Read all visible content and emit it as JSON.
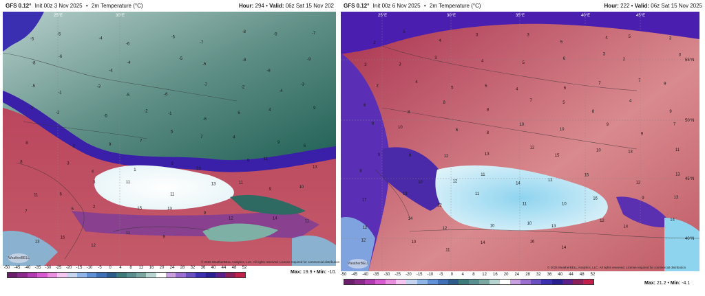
{
  "left": {
    "model": "GFS 0.12°",
    "init": "Init 00z 3 Nov 2025",
    "field": "2m Temperature (°C)",
    "hour_label": "Hour:",
    "hour": "294",
    "valid_label": "Valid:",
    "valid": "06z Sat 15 Nov 202",
    "lon_labels": [
      "25°E",
      "30°E"
    ],
    "max_label": "Max:",
    "max": "19.9",
    "min_label": "Min:",
    "min": "-10.",
    "license": "© 2025 WeatherBELL Analytics, LLC. All rights reserved. License required for commercial distribution",
    "logo": "WeatherBELL",
    "numbers": [
      "-5",
      "-5",
      "-4",
      "-6",
      "-5",
      "-7",
      "-8",
      "-9",
      "-7",
      "-8",
      "-6",
      "-4",
      "-4",
      "-5",
      "-5",
      "-8",
      "-8",
      "-9",
      "-5",
      "-1",
      "-3",
      "-5",
      "-6",
      "-7",
      "-2",
      "-4",
      "-3",
      "-1",
      "-2",
      "-5",
      "-2",
      "-1",
      "-6",
      "6",
      "4",
      "9",
      "8",
      "2",
      "9",
      "7",
      "5",
      "7",
      "4",
      "9",
      "6",
      "8",
      "3",
      "4",
      "1",
      "9",
      "13",
      "9",
      "11",
      "13",
      "11",
      "6",
      "3",
      "11",
      "11",
      "13",
      "11",
      "9",
      "10",
      "7",
      "5",
      "2",
      "15",
      "13",
      "9",
      "12",
      "14",
      "11",
      "13",
      "15",
      "12",
      "11",
      "9"
    ]
  },
  "right": {
    "model": "GFS 0.12°",
    "init": "Init 00z 6 Nov 2025",
    "field": "2m Temperature (°C)",
    "hour_label": "Hour:",
    "hour": "222",
    "valid_label": "Valid:",
    "valid": "06z Sat 15 Nov 2025",
    "lon_labels": [
      "25°E",
      "30°E",
      "35°E",
      "40°E",
      "45°E"
    ],
    "lat_labels": [
      "55°N",
      "50°N",
      "45°N",
      "40°N"
    ],
    "max_label": "Max:",
    "max": "21.2",
    "min_label": "Min:",
    "min": "-4.1",
    "license": "© 2025 WeatherBELL Analytics, LLC. All rights reserved. License required for commercial distribution",
    "logo": "WeatherBELL",
    "numbers": [
      "2",
      "5",
      "4",
      "3",
      "3",
      "5",
      "4",
      "5",
      "3",
      "3",
      "3",
      "3",
      "4",
      "5",
      "6",
      "3",
      "2",
      "3",
      "2",
      "4",
      "5",
      "5",
      "4",
      "6",
      "7",
      "7",
      "9",
      "6",
      "8",
      "8",
      "8",
      "7",
      "5",
      "8",
      "4",
      "9",
      "8",
      "10",
      "6",
      "8",
      "10",
      "10",
      "9",
      "9",
      "7",
      "9",
      "9",
      "12",
      "13",
      "12",
      "15",
      "10",
      "13",
      "11",
      "8",
      "10",
      "12",
      "11",
      "14",
      "12",
      "15",
      "12",
      "13",
      "17",
      "13",
      "12",
      "11",
      "11",
      "10",
      "16",
      "9",
      "13",
      "12",
      "14",
      "12",
      "10",
      "10",
      "13",
      "12",
      "14",
      "14",
      "12",
      "10",
      "11",
      "14",
      "16",
      "14"
    ]
  },
  "colorbar_ticks": [
    "-50",
    "-45",
    "-40",
    "-35",
    "-30",
    "-25",
    "-20",
    "-15",
    "-10",
    "-5",
    "0",
    "4",
    "8",
    "12",
    "16",
    "20",
    "24",
    "28",
    "32",
    "36",
    "40",
    "44",
    "48",
    "52"
  ],
  "colorbar_colors": [
    "#6b1f6b",
    "#8a2a8a",
    "#b03ab0",
    "#d75ad0",
    "#e98ee0",
    "#f4c6f0",
    "#c7d4f0",
    "#8fb5e8",
    "#5f8fd5",
    "#3f6fb5",
    "#2e5c8a",
    "#3d7a7a",
    "#5a8f8f",
    "#7aa8a0",
    "#b8d4d0",
    "#ffffff",
    "#c8a0e0",
    "#9a6fd0",
    "#6a4fc0",
    "#3b2fb0",
    "#2a1f90",
    "#5a1f8a",
    "#8a1f5a",
    "#c0204a"
  ]
}
